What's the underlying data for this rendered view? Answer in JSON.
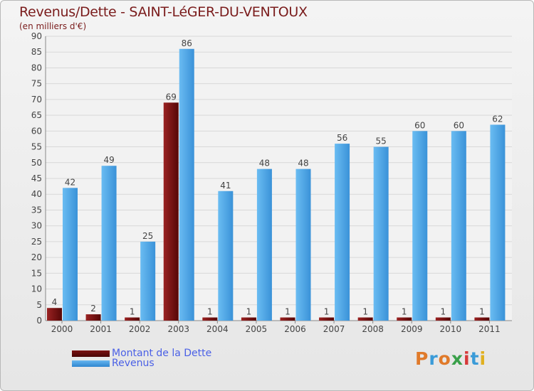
{
  "header": {
    "title": "Revenus/Dette - SAINT-LéGER-DU-VENTOUX",
    "unit_note": "(en milliers d'€)"
  },
  "brand": {
    "name": "Proxiti"
  },
  "colors": {
    "debt": "#6e0a0a",
    "revenue": "#4aa3e6",
    "title": "#7a1c1c",
    "legend_text": "#4a60e6"
  },
  "chart_data": {
    "type": "bar",
    "title": "Revenus/Dette - SAINT-LéGER-DU-VENTOUX",
    "ylabel": "(en milliers d'€)",
    "xlabel": "",
    "categories": [
      "2000",
      "2001",
      "2002",
      "2003",
      "2004",
      "2005",
      "2006",
      "2007",
      "2008",
      "2009",
      "2010",
      "2011"
    ],
    "series": [
      {
        "name": "Montant de la Dette",
        "color": "#6e0a0a",
        "values": [
          4,
          2,
          1,
          69,
          1,
          1,
          1,
          1,
          1,
          1,
          1,
          1
        ]
      },
      {
        "name": "Revenus",
        "color": "#4aa3e6",
        "values": [
          42,
          49,
          25,
          86,
          41,
          48,
          48,
          56,
          55,
          60,
          60,
          62
        ]
      }
    ],
    "ylim": [
      0,
      90
    ],
    "ytick_step": 5,
    "grid": true,
    "legend_position": "bottom-left"
  }
}
